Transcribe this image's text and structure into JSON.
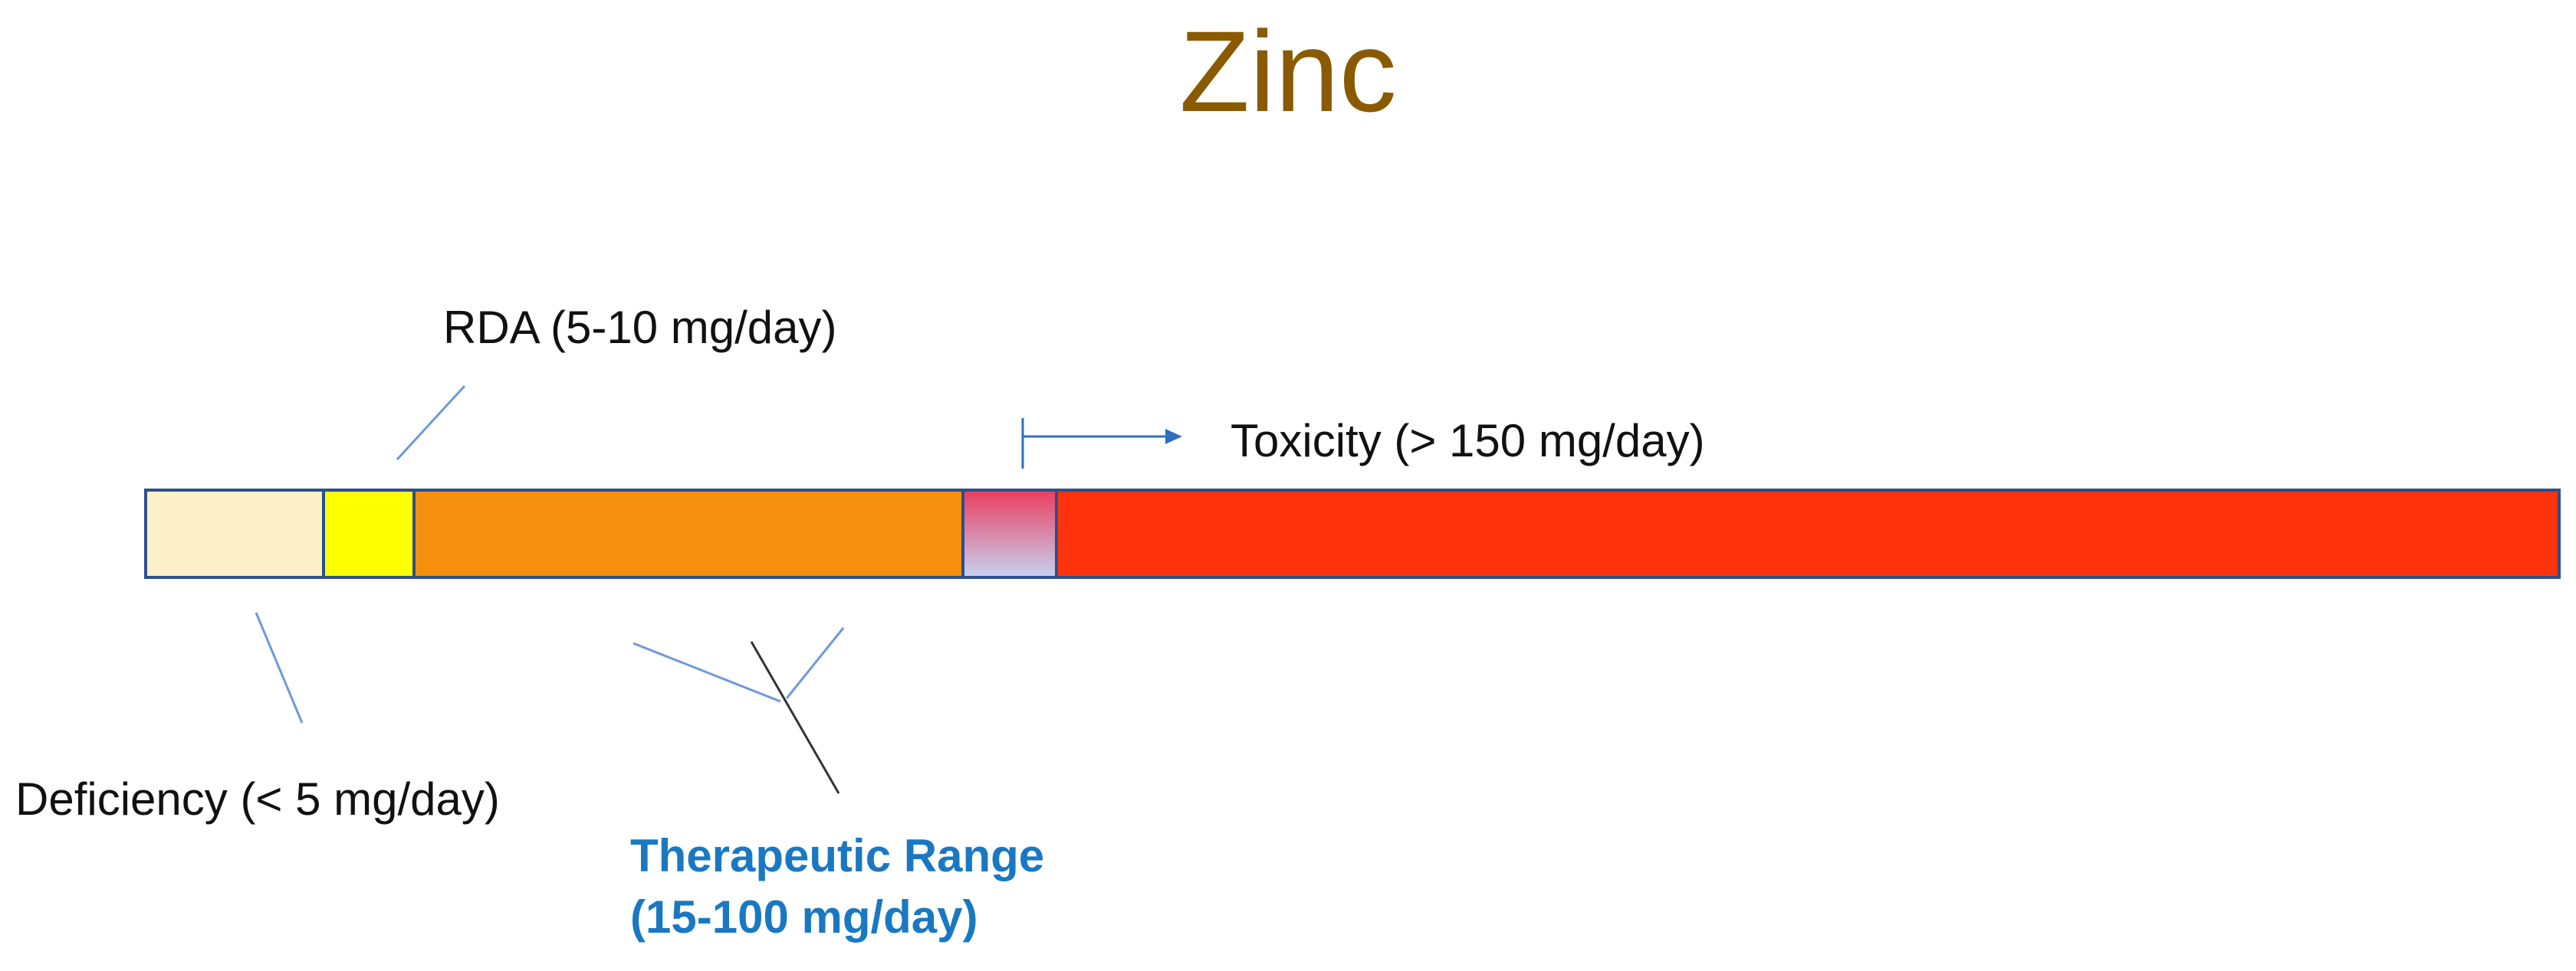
{
  "title": "Zinc",
  "labels": {
    "rda": "RDA (5-10 mg/day)",
    "toxicity": "Toxicity (> 150 mg/day)",
    "deficiency": "Deficiency (< 5 mg/day)",
    "therapeutic_line1": "Therapeutic Range",
    "therapeutic_line2": "(15-100 mg/day)"
  },
  "colors": {
    "title": "#8a5a00",
    "deficiency": "#fdf0c8",
    "rda": "#ffff00",
    "therapeutic": "#f5900f",
    "transition_top": "#e84060",
    "transition_bottom": "#c8d0f0",
    "toxicity": "#ff330e",
    "therapeutic_label": "#1a78c2",
    "connector": "#6d9ad8"
  }
}
